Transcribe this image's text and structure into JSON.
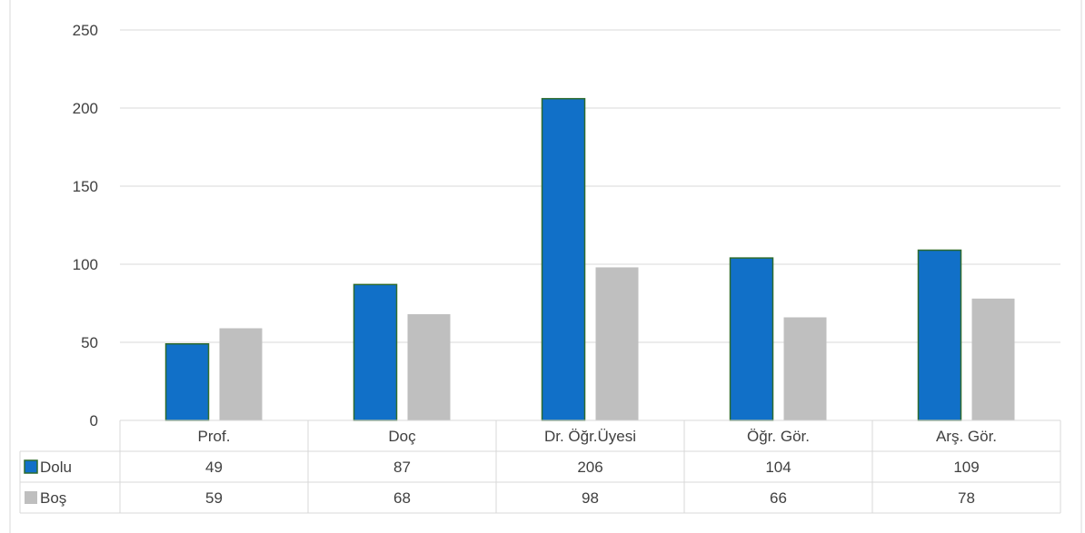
{
  "chart_data": {
    "type": "bar",
    "title": "",
    "xlabel": "",
    "ylabel": "",
    "categories": [
      "Prof.",
      "Doç",
      "Dr. Öğr.Üyesi",
      "Öğr. Gör.",
      "Arş. Gör."
    ],
    "series": [
      {
        "name": "Dolu",
        "color": "#1170c8",
        "values": [
          49,
          87,
          206,
          104,
          109
        ]
      },
      {
        "name": "Boş",
        "color": "#bfbfbf",
        "values": [
          59,
          68,
          98,
          66,
          78
        ]
      }
    ],
    "ylim": [
      0,
      250
    ],
    "yticks": [
      "0",
      "50",
      "100",
      "150",
      "200",
      "250"
    ],
    "grid": true,
    "legend": "data-table-left",
    "data_table": true
  }
}
